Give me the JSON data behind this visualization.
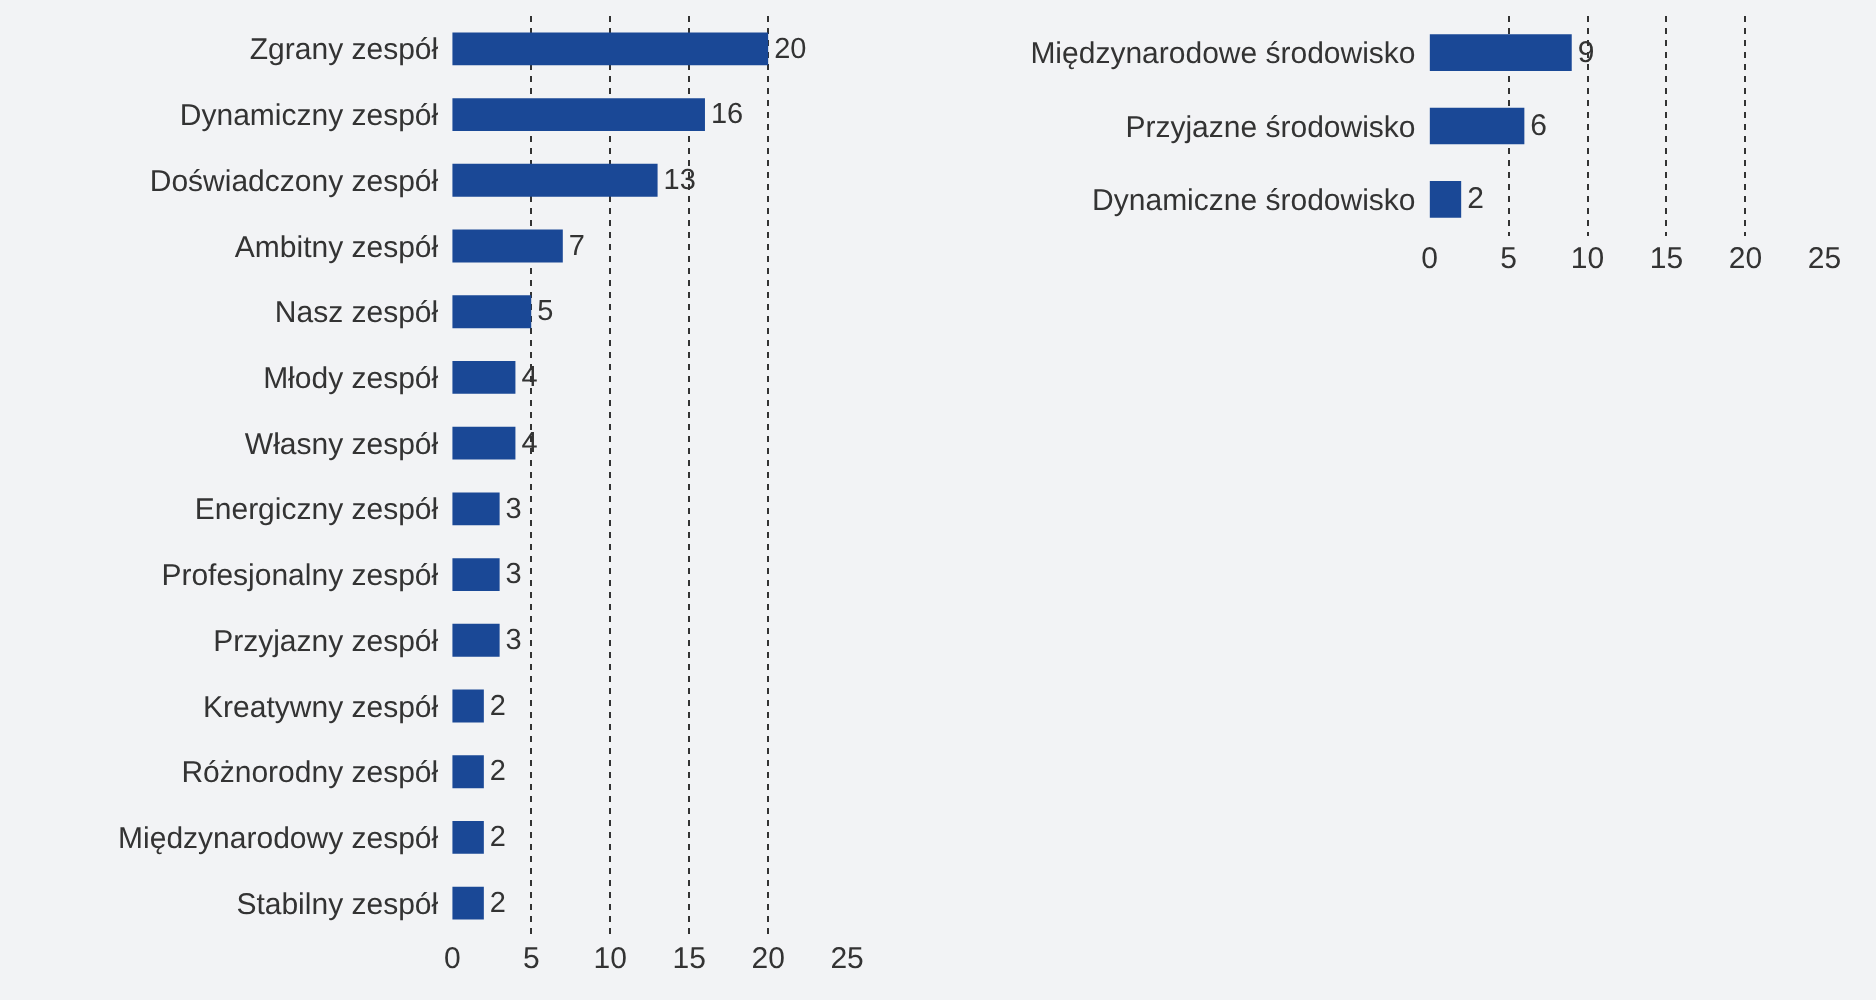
{
  "chart_data": [
    {
      "type": "bar",
      "orientation": "horizontal",
      "categories": [
        "Zgrany zespół",
        "Dynamiczny zespół",
        "Doświadczony zespół",
        "Ambitny zespół",
        "Nasz zespół",
        "Młody zespół",
        "Własny zespół",
        "Energiczny zespół",
        "Profesjonalny zespół",
        "Przyjazny zespół",
        "Kreatywny zespół",
        "Różnorodny zespół",
        "Międzynarodowy zespół",
        "Stabilny zespół"
      ],
      "values": [
        20,
        16,
        13,
        7,
        5,
        4,
        4,
        3,
        3,
        3,
        2,
        2,
        2,
        2
      ],
      "color": "#1a4896",
      "xlim": [
        0,
        25
      ],
      "xticks": [
        0,
        5,
        10,
        15,
        20,
        25
      ],
      "grid": "x",
      "data_labels": true
    },
    {
      "type": "bar",
      "orientation": "horizontal",
      "categories": [
        "Międzynarodowe środowisko",
        "Przyjazne środowisko",
        "Dynamiczne środowisko"
      ],
      "values": [
        9,
        6,
        2
      ],
      "color": "#1a4896",
      "xlim": [
        0,
        25
      ],
      "xticks": [
        0,
        5,
        10,
        15,
        20,
        25
      ],
      "grid": "x",
      "data_labels": true
    }
  ]
}
